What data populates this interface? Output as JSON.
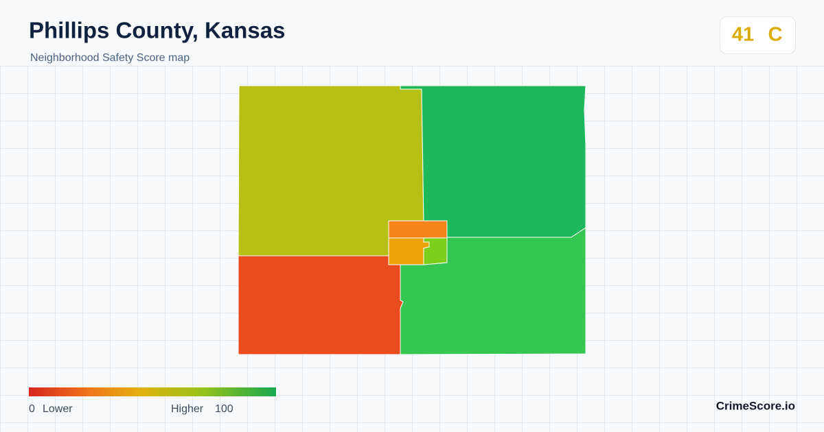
{
  "header": {
    "title": "Phillips County, Kansas",
    "subtitle": "Neighborhood Safety Score map"
  },
  "badge": {
    "score": 41,
    "grade": "C"
  },
  "legend": {
    "min": 0,
    "min_label": "Lower",
    "max_label": "Higher",
    "max": 100
  },
  "brand": "CrimeScore.io"
}
